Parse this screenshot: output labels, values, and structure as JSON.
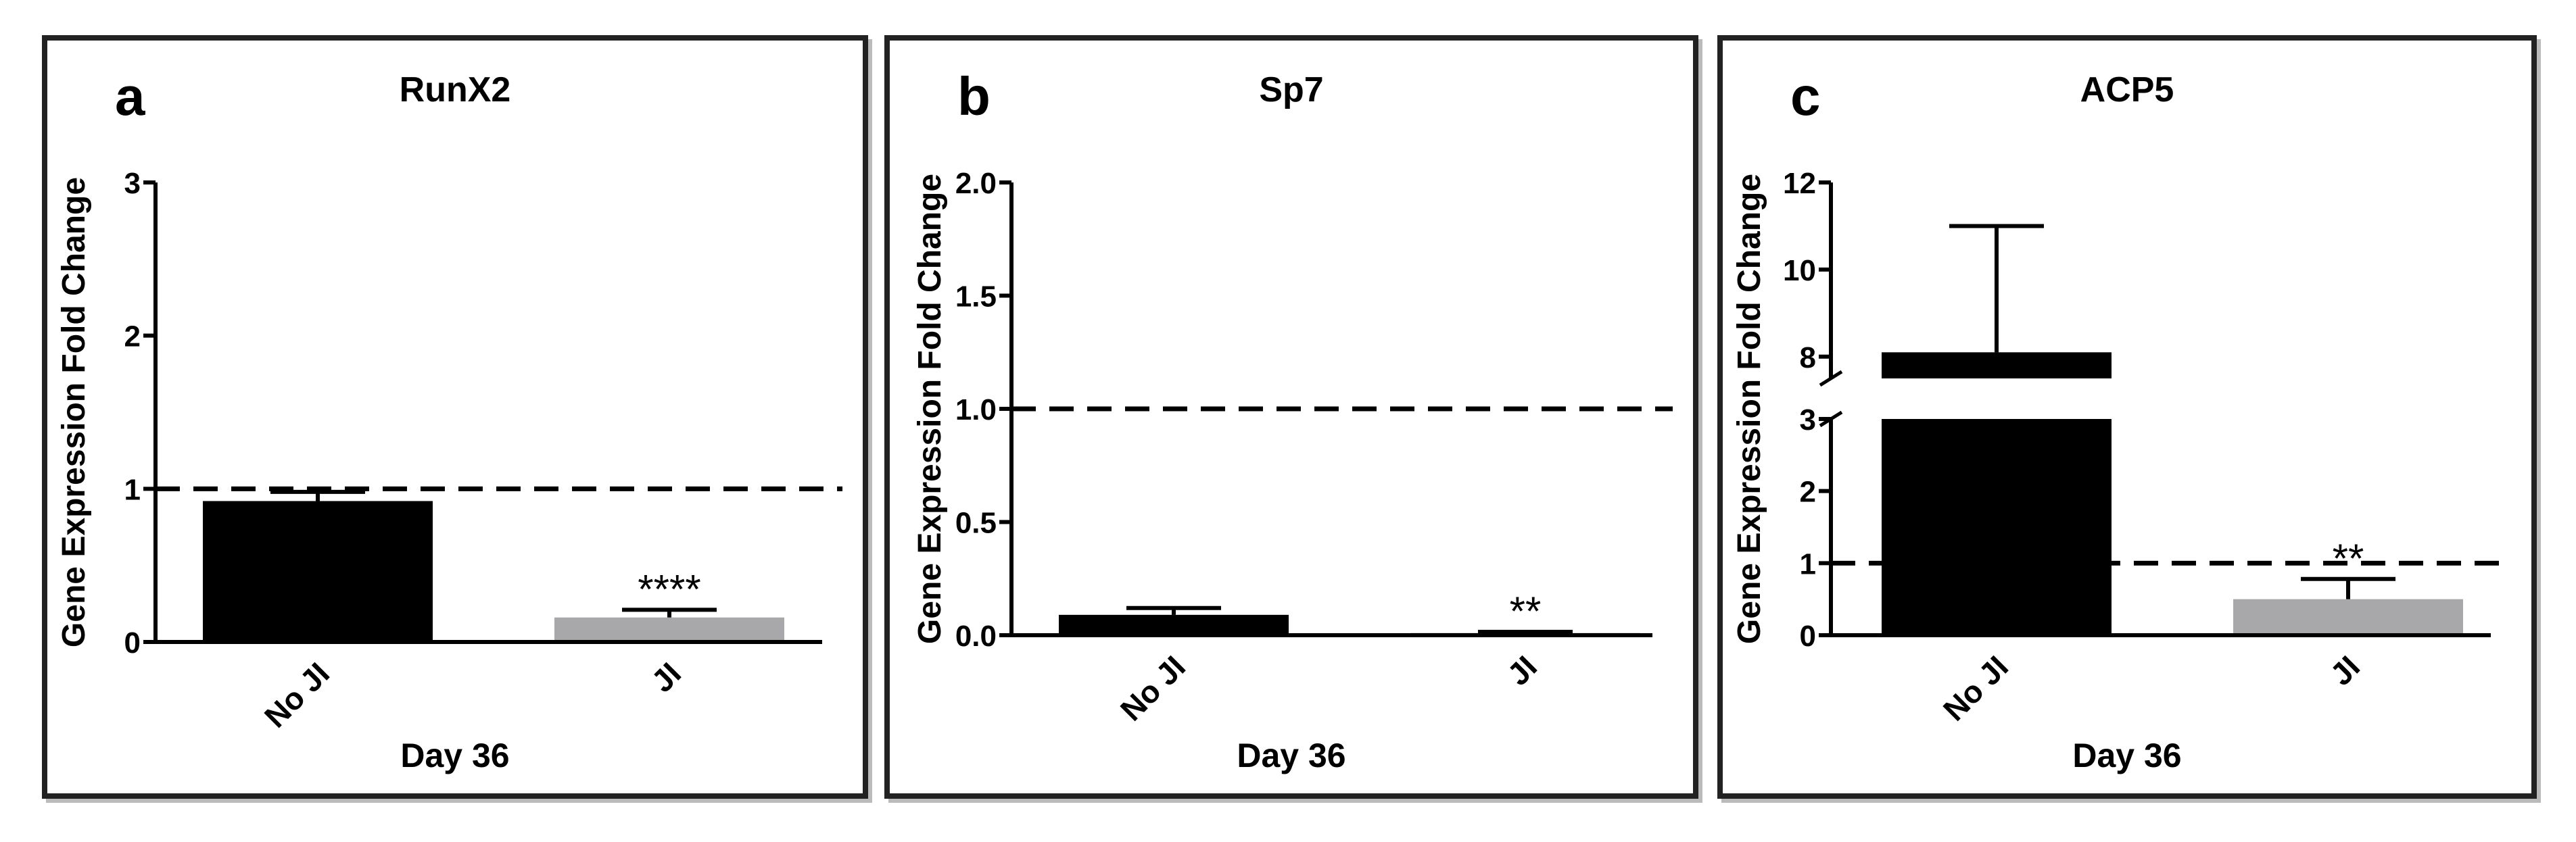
{
  "chart_data": [
    {
      "type": "bar",
      "panel_letter": "a",
      "title": "RunX2",
      "xlabel": "Day 36",
      "ylabel": "Gene Expression Fold Change",
      "categories": [
        "No JI",
        "JI"
      ],
      "values": [
        0.92,
        0.16
      ],
      "errors": [
        0.06,
        0.05
      ],
      "bar_colors": [
        "#000000",
        "#a8a8ab"
      ],
      "significance": [
        "",
        "****"
      ],
      "reference_line": 1,
      "ylim": [
        0,
        3
      ],
      "yticks": [
        0,
        1,
        2,
        3
      ],
      "ytick_labels": [
        "0",
        "1",
        "2",
        "3"
      ]
    },
    {
      "type": "bar",
      "panel_letter": "b",
      "title": "Sp7",
      "xlabel": "Day 36",
      "ylabel": "Gene Expression Fold Change",
      "categories": [
        "No JI",
        "JI"
      ],
      "values": [
        0.09,
        0.01
      ],
      "errors": [
        0.03,
        0.005
      ],
      "bar_colors": [
        "#000000",
        "#a8a8ab"
      ],
      "significance": [
        "",
        "**"
      ],
      "reference_line": 1,
      "ylim": [
        0,
        2
      ],
      "yticks": [
        0,
        0.5,
        1,
        1.5,
        2
      ],
      "ytick_labels": [
        "0.0",
        "0.5",
        "1.0",
        "1.5",
        "2.0"
      ]
    },
    {
      "type": "bar",
      "panel_letter": "c",
      "title": "ACP5",
      "xlabel": "Day 36",
      "ylabel": "Gene Expression Fold Change",
      "categories": [
        "No JI",
        "JI"
      ],
      "values": [
        8.1,
        0.5
      ],
      "errors": [
        2.9,
        0.28
      ],
      "bar_colors": [
        "#000000",
        "#a8a8ab"
      ],
      "significance": [
        "",
        "**"
      ],
      "reference_line": 1,
      "broken_axis": {
        "lower_range": [
          0,
          3
        ],
        "upper_range": [
          7.5,
          12
        ]
      },
      "yticks": [
        0,
        1,
        2,
        3,
        8,
        10,
        12
      ],
      "ytick_labels": [
        "0",
        "1",
        "2",
        "3",
        "8",
        "10",
        "12"
      ]
    }
  ]
}
